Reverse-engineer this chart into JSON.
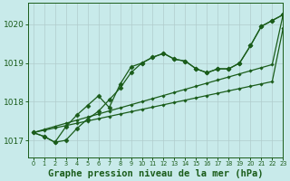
{
  "background_color": "#c8eaea",
  "plot_bg_color": "#c8eaea",
  "grid_color": "#b0cccc",
  "line_color": "#1a5c1a",
  "xlabel": "Graphe pression niveau de la mer (hPa)",
  "xlabel_fontsize": 7.5,
  "ylabel_ticks": [
    1017,
    1018,
    1019,
    1020
  ],
  "xlim": [
    -0.5,
    23
  ],
  "ylim": [
    1016.55,
    1020.55
  ],
  "x": [
    0,
    1,
    2,
    3,
    4,
    5,
    6,
    7,
    8,
    9,
    10,
    11,
    12,
    13,
    14,
    15,
    16,
    17,
    18,
    19,
    20,
    21,
    22,
    23
  ],
  "series1": [
    1017.2,
    1017.1,
    1016.95,
    1017.35,
    1017.65,
    1017.9,
    1018.15,
    1017.85,
    1018.45,
    1018.9,
    1019.0,
    1019.15,
    1019.25,
    1019.1,
    1019.05,
    1018.85,
    1018.75,
    1018.85,
    1018.85,
    1019.0,
    1019.45,
    1019.95,
    1020.1,
    1020.25
  ],
  "series2": [
    1017.2,
    1017.1,
    1016.95,
    1017.0,
    1017.3,
    1017.55,
    1017.75,
    1018.05,
    1018.35,
    1018.75,
    1019.0,
    1019.15,
    1019.25,
    1019.1,
    1019.05,
    1018.85,
    1018.75,
    1018.85,
    1018.85,
    1019.0,
    1019.45,
    1019.95,
    1020.1,
    1020.25
  ],
  "series3": [
    1017.2,
    1017.28,
    1017.36,
    1017.44,
    1017.52,
    1017.6,
    1017.68,
    1017.76,
    1017.84,
    1017.92,
    1018.0,
    1018.08,
    1018.16,
    1018.24,
    1018.32,
    1018.4,
    1018.48,
    1018.56,
    1018.64,
    1018.72,
    1018.8,
    1018.88,
    1018.96,
    1020.25
  ],
  "series4": [
    1017.2,
    1017.26,
    1017.32,
    1017.38,
    1017.44,
    1017.5,
    1017.56,
    1017.62,
    1017.68,
    1017.74,
    1017.8,
    1017.86,
    1017.92,
    1017.98,
    1018.04,
    1018.1,
    1018.16,
    1018.22,
    1018.28,
    1018.34,
    1018.4,
    1018.46,
    1018.52,
    1019.9
  ],
  "xtick_labels": [
    "0",
    "1",
    "2",
    "3",
    "4",
    "5",
    "6",
    "7",
    "8",
    "9",
    "10",
    "11",
    "12",
    "13",
    "14",
    "15",
    "16",
    "17",
    "18",
    "19",
    "20",
    "21",
    "22",
    "23"
  ]
}
